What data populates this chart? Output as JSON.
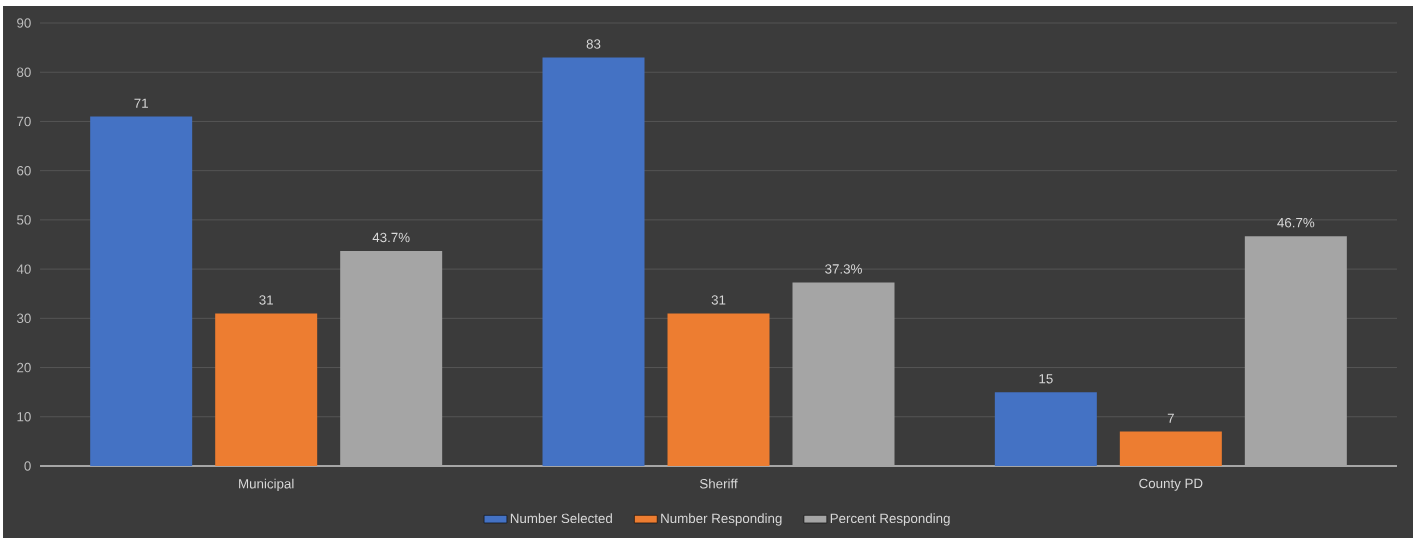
{
  "chart_data": {
    "type": "bar",
    "categories": [
      "Municipal",
      "Sheriff",
      "County PD"
    ],
    "series": [
      {
        "name": "Number Selected",
        "color": "#4472c4",
        "values": [
          71,
          83,
          15
        ],
        "value_labels": [
          "71",
          "83",
          "15"
        ]
      },
      {
        "name": "Number Responding",
        "color": "#ed7d31",
        "values": [
          31,
          31,
          7
        ],
        "value_labels": [
          "31",
          "31",
          "7"
        ]
      },
      {
        "name": "Percent Responding",
        "color": "#a5a5a5",
        "values": [
          43.7,
          37.3,
          46.7
        ],
        "value_labels": [
          "43.7%",
          "37.3%",
          "46.7%"
        ]
      }
    ],
    "ylim": [
      0,
      90
    ],
    "yticks": [
      0,
      10,
      20,
      30,
      40,
      50,
      60,
      70,
      80,
      90
    ],
    "grid": "y",
    "legend": "bottom"
  }
}
